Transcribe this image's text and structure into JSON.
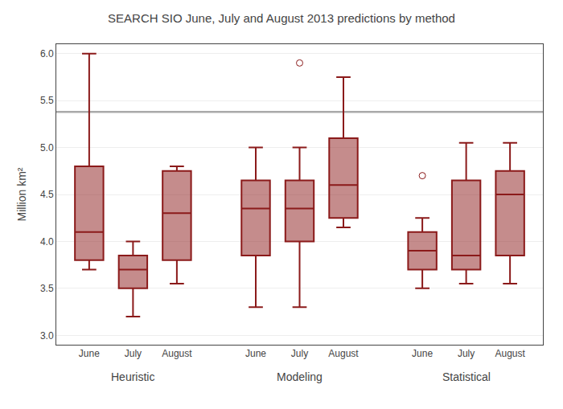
{
  "chart_data": {
    "type": "box",
    "title": "SEARCH SIO June, July and August 2013 predictions by method",
    "ylabel": "Million km²",
    "ylim": [
      2.9,
      6.1
    ],
    "yticks": [
      {
        "value": 3.0,
        "label": "3.0"
      },
      3.5,
      {
        "value": 4.0,
        "label": "4.0"
      },
      4.5,
      {
        "value": 5.0,
        "label": "5.0"
      },
      5.5,
      {
        "value": 6.0,
        "label": "6.0"
      }
    ],
    "grid": true,
    "color": "#8b1a1a",
    "reference_line": {
      "value": 5.38,
      "color": "#aaaaaa"
    },
    "categories": [
      "June",
      "July",
      "August"
    ],
    "groups": [
      {
        "name": "Heuristic",
        "boxes": [
          {
            "whislo": 3.7,
            "q1": 3.8,
            "med": 4.1,
            "q3": 4.8,
            "whishi": 6.0,
            "fliers": []
          },
          {
            "whislo": 3.2,
            "q1": 3.5,
            "med": 3.7,
            "q3": 3.85,
            "whishi": 4.0,
            "fliers": []
          },
          {
            "whislo": 3.55,
            "q1": 3.8,
            "med": 4.3,
            "q3": 4.75,
            "whishi": 4.8,
            "fliers": []
          }
        ]
      },
      {
        "name": "Modeling",
        "boxes": [
          {
            "whislo": 3.3,
            "q1": 3.85,
            "med": 4.35,
            "q3": 4.65,
            "whishi": 5.0,
            "fliers": []
          },
          {
            "whislo": 3.3,
            "q1": 4.0,
            "med": 4.35,
            "q3": 4.65,
            "whishi": 5.0,
            "fliers": [
              5.9
            ]
          },
          {
            "whislo": 4.15,
            "q1": 4.25,
            "med": 4.6,
            "q3": 5.1,
            "whishi": 5.75,
            "fliers": []
          }
        ]
      },
      {
        "name": "Statistical",
        "boxes": [
          {
            "whislo": 3.5,
            "q1": 3.7,
            "med": 3.9,
            "q3": 4.1,
            "whishi": 4.25,
            "fliers": [
              4.7
            ]
          },
          {
            "whislo": 3.55,
            "q1": 3.7,
            "med": 3.85,
            "q3": 4.65,
            "whishi": 5.05,
            "fliers": []
          },
          {
            "whislo": 3.55,
            "q1": 3.85,
            "med": 4.5,
            "q3": 4.75,
            "whishi": 5.05,
            "fliers": []
          }
        ]
      }
    ]
  }
}
